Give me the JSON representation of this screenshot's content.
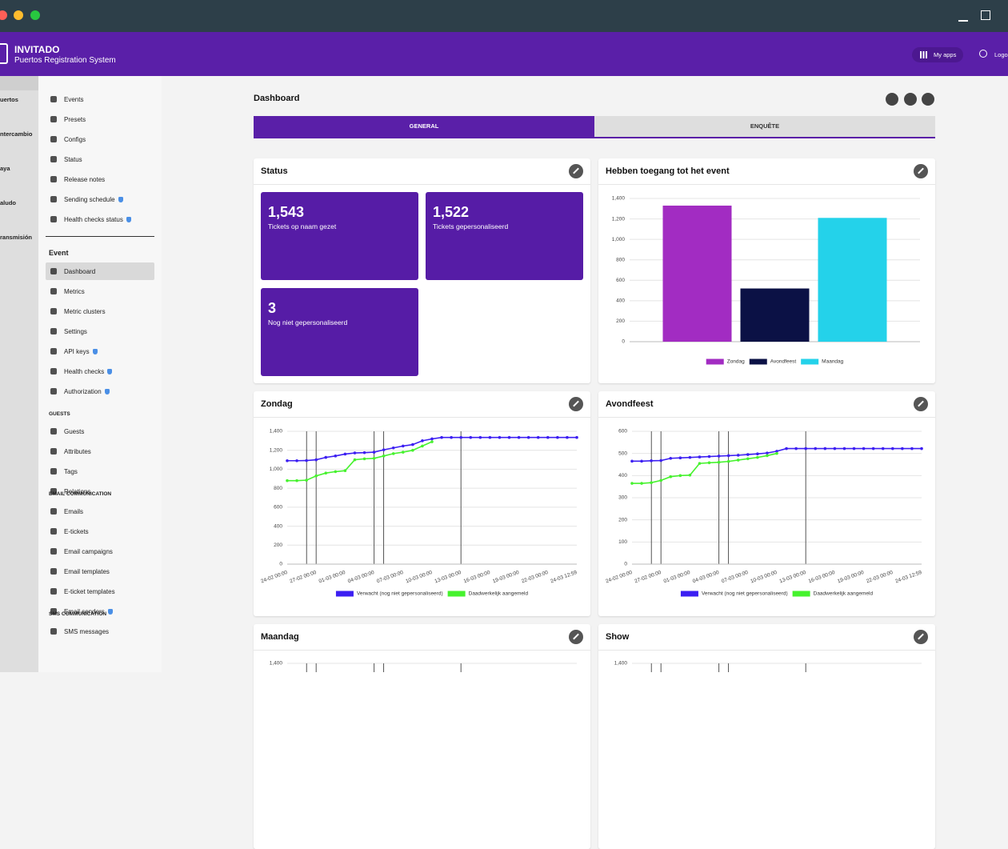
{
  "header": {
    "brand": "INVITADO",
    "subtitle": "Puertos Registration System",
    "actions": [
      "My apps",
      "Logo"
    ]
  },
  "rail": [
    "uertos",
    "ntercambio",
    "aya",
    "aludo",
    "ransmisión"
  ],
  "sidebar": {
    "main": [
      {
        "label": "Events"
      },
      {
        "label": "Presets"
      },
      {
        "label": "Configs"
      },
      {
        "label": "Status"
      },
      {
        "label": "Release notes"
      },
      {
        "label": "Sending schedule",
        "badge": true
      },
      {
        "label": "Health checks status",
        "badge": true
      }
    ],
    "event": {
      "heading": "Event",
      "items": [
        {
          "label": "Dashboard",
          "active": true
        },
        {
          "label": "Metrics"
        },
        {
          "label": "Metric clusters"
        },
        {
          "label": "Settings"
        },
        {
          "label": "API keys",
          "badge": true
        },
        {
          "label": "Health checks",
          "badge": true
        },
        {
          "label": "Authorization",
          "badge": true
        }
      ]
    },
    "sections": [
      {
        "heading": "GUESTS",
        "items": [
          {
            "label": "Guests"
          },
          {
            "label": "Attributes"
          },
          {
            "label": "Tags"
          },
          {
            "label": "Relations"
          }
        ]
      },
      {
        "heading": "EMAIL COMMUNICATION",
        "items": [
          {
            "label": "Emails"
          },
          {
            "label": "E-tickets"
          },
          {
            "label": "Email campaigns"
          },
          {
            "label": "Email templates"
          },
          {
            "label": "E-ticket templates"
          },
          {
            "label": "Email senders",
            "badge": true
          }
        ]
      },
      {
        "heading": "SMS COMMUNICATION",
        "items": [
          {
            "label": "SMS messages"
          }
        ]
      }
    ]
  },
  "dashboard": {
    "title": "Dashboard",
    "tabs": [
      "GENERAL",
      "ENQUÊTE"
    ],
    "active_tab": 0
  },
  "status": {
    "title": "Status",
    "tiles": [
      {
        "value": "1,543",
        "label": "Tickets op naam gezet"
      },
      {
        "value": "1,522",
        "label": "Tickets gepersonaliseerd"
      },
      {
        "value": "3",
        "label": "Nog niet gepersonaliseerd"
      }
    ]
  },
  "chart_data": [
    {
      "type": "bar",
      "title": "Hebben toegang tot het event",
      "categories": [
        "Zondag",
        "Avondfeest",
        "Maandag"
      ],
      "values": [
        1330,
        520,
        1210
      ],
      "colors": [
        "#a22cc2",
        "#0b1145",
        "#24d2ea"
      ],
      "ylim": [
        0,
        1400
      ],
      "yticks": [
        0,
        200,
        400,
        600,
        800,
        {
          "value": 1000,
          "label": "1,000"
        },
        {
          "value": 1200,
          "label": "1,200"
        },
        {
          "value": 1400,
          "label": "1,400"
        }
      ],
      "grid": true
    },
    {
      "type": "line",
      "title": "Zondag",
      "categories": [
        "24-02 00:00",
        null,
        null,
        "27-02 00:00",
        null,
        null,
        "01-03 00:00",
        null,
        null,
        "04-03 00:00",
        null,
        null,
        "07-03 00:00",
        null,
        null,
        "10-03 00:00",
        null,
        null,
        "13-03 00:00",
        null,
        null,
        "16-03 00:00",
        null,
        null,
        "19-03 00:00",
        null,
        null,
        "22-03 00:00",
        null,
        null,
        "24-03 12:59"
      ],
      "series": [
        {
          "name": "Verwacht (nog niet gepersonaliseerd)",
          "color": "#3c1ff2",
          "values": [
            1090,
            1090,
            1092,
            1100,
            1125,
            1140,
            1160,
            1172,
            1175,
            1180,
            1205,
            1225,
            1245,
            1260,
            1300,
            1320,
            1335,
            1335,
            1335,
            1335,
            1335,
            1335,
            1335,
            1335,
            1335,
            1335,
            1335,
            1335,
            1335,
            1335,
            1335
          ]
        },
        {
          "name": "Daadwerkelijk aangemeld",
          "color": "#46f22e",
          "values": [
            880,
            880,
            885,
            930,
            960,
            975,
            985,
            1100,
            1110,
            1115,
            1140,
            1165,
            1180,
            1200,
            1245,
            1290,
            null,
            null,
            null,
            null,
            null,
            null,
            null,
            null,
            null,
            null,
            null,
            null,
            null,
            null,
            null
          ]
        }
      ],
      "ylim": [
        0,
        1400
      ],
      "yticks": [
        0,
        200,
        400,
        600,
        800,
        {
          "value": 1000,
          "label": "1,000"
        },
        {
          "value": 1200,
          "label": "1,200"
        },
        {
          "value": 1400,
          "label": "1,400"
        }
      ],
      "grid": true
    },
    {
      "type": "line",
      "title": "Avondfeest",
      "categories": [
        "24-02 00:00",
        null,
        null,
        "27-02 00:00",
        null,
        null,
        "01-03 00:00",
        null,
        null,
        "04-03 00:00",
        null,
        null,
        "07-03 00:00",
        null,
        null,
        "10-03 00:00",
        null,
        null,
        "13-03 00:00",
        null,
        null,
        "16-03 00:00",
        null,
        null,
        "19-03 00:00",
        null,
        null,
        "22-03 00:00",
        null,
        null,
        "24-03 12:59"
      ],
      "series": [
        {
          "name": "Verwacht (nog niet gepersonaliseerd)",
          "color": "#3c1ff2",
          "values": [
            465,
            465,
            467,
            468,
            478,
            480,
            482,
            484,
            486,
            488,
            490,
            492,
            495,
            498,
            502,
            510,
            522,
            522,
            522,
            522,
            522,
            522,
            522,
            522,
            522,
            522,
            522,
            522,
            522,
            522,
            522
          ]
        },
        {
          "name": "Daadwerkelijk aangemeld",
          "color": "#46f22e",
          "values": [
            365,
            365,
            368,
            378,
            395,
            400,
            402,
            455,
            458,
            460,
            464,
            470,
            476,
            482,
            490,
            500,
            null,
            null,
            null,
            null,
            null,
            null,
            null,
            null,
            null,
            null,
            null,
            null,
            null,
            null,
            null
          ]
        }
      ],
      "ylim": [
        0,
        600
      ],
      "yticks": [
        0,
        100,
        200,
        300,
        400,
        500,
        600
      ],
      "grid": true
    },
    {
      "type": "line",
      "title": "Maandag",
      "yticks": [
        {
          "value": 1400,
          "label": "1,400"
        }
      ],
      "grid": true
    },
    {
      "type": "line",
      "title": "Show",
      "yticks": [
        {
          "value": 1400,
          "label": "1,400"
        }
      ],
      "grid": true
    }
  ]
}
